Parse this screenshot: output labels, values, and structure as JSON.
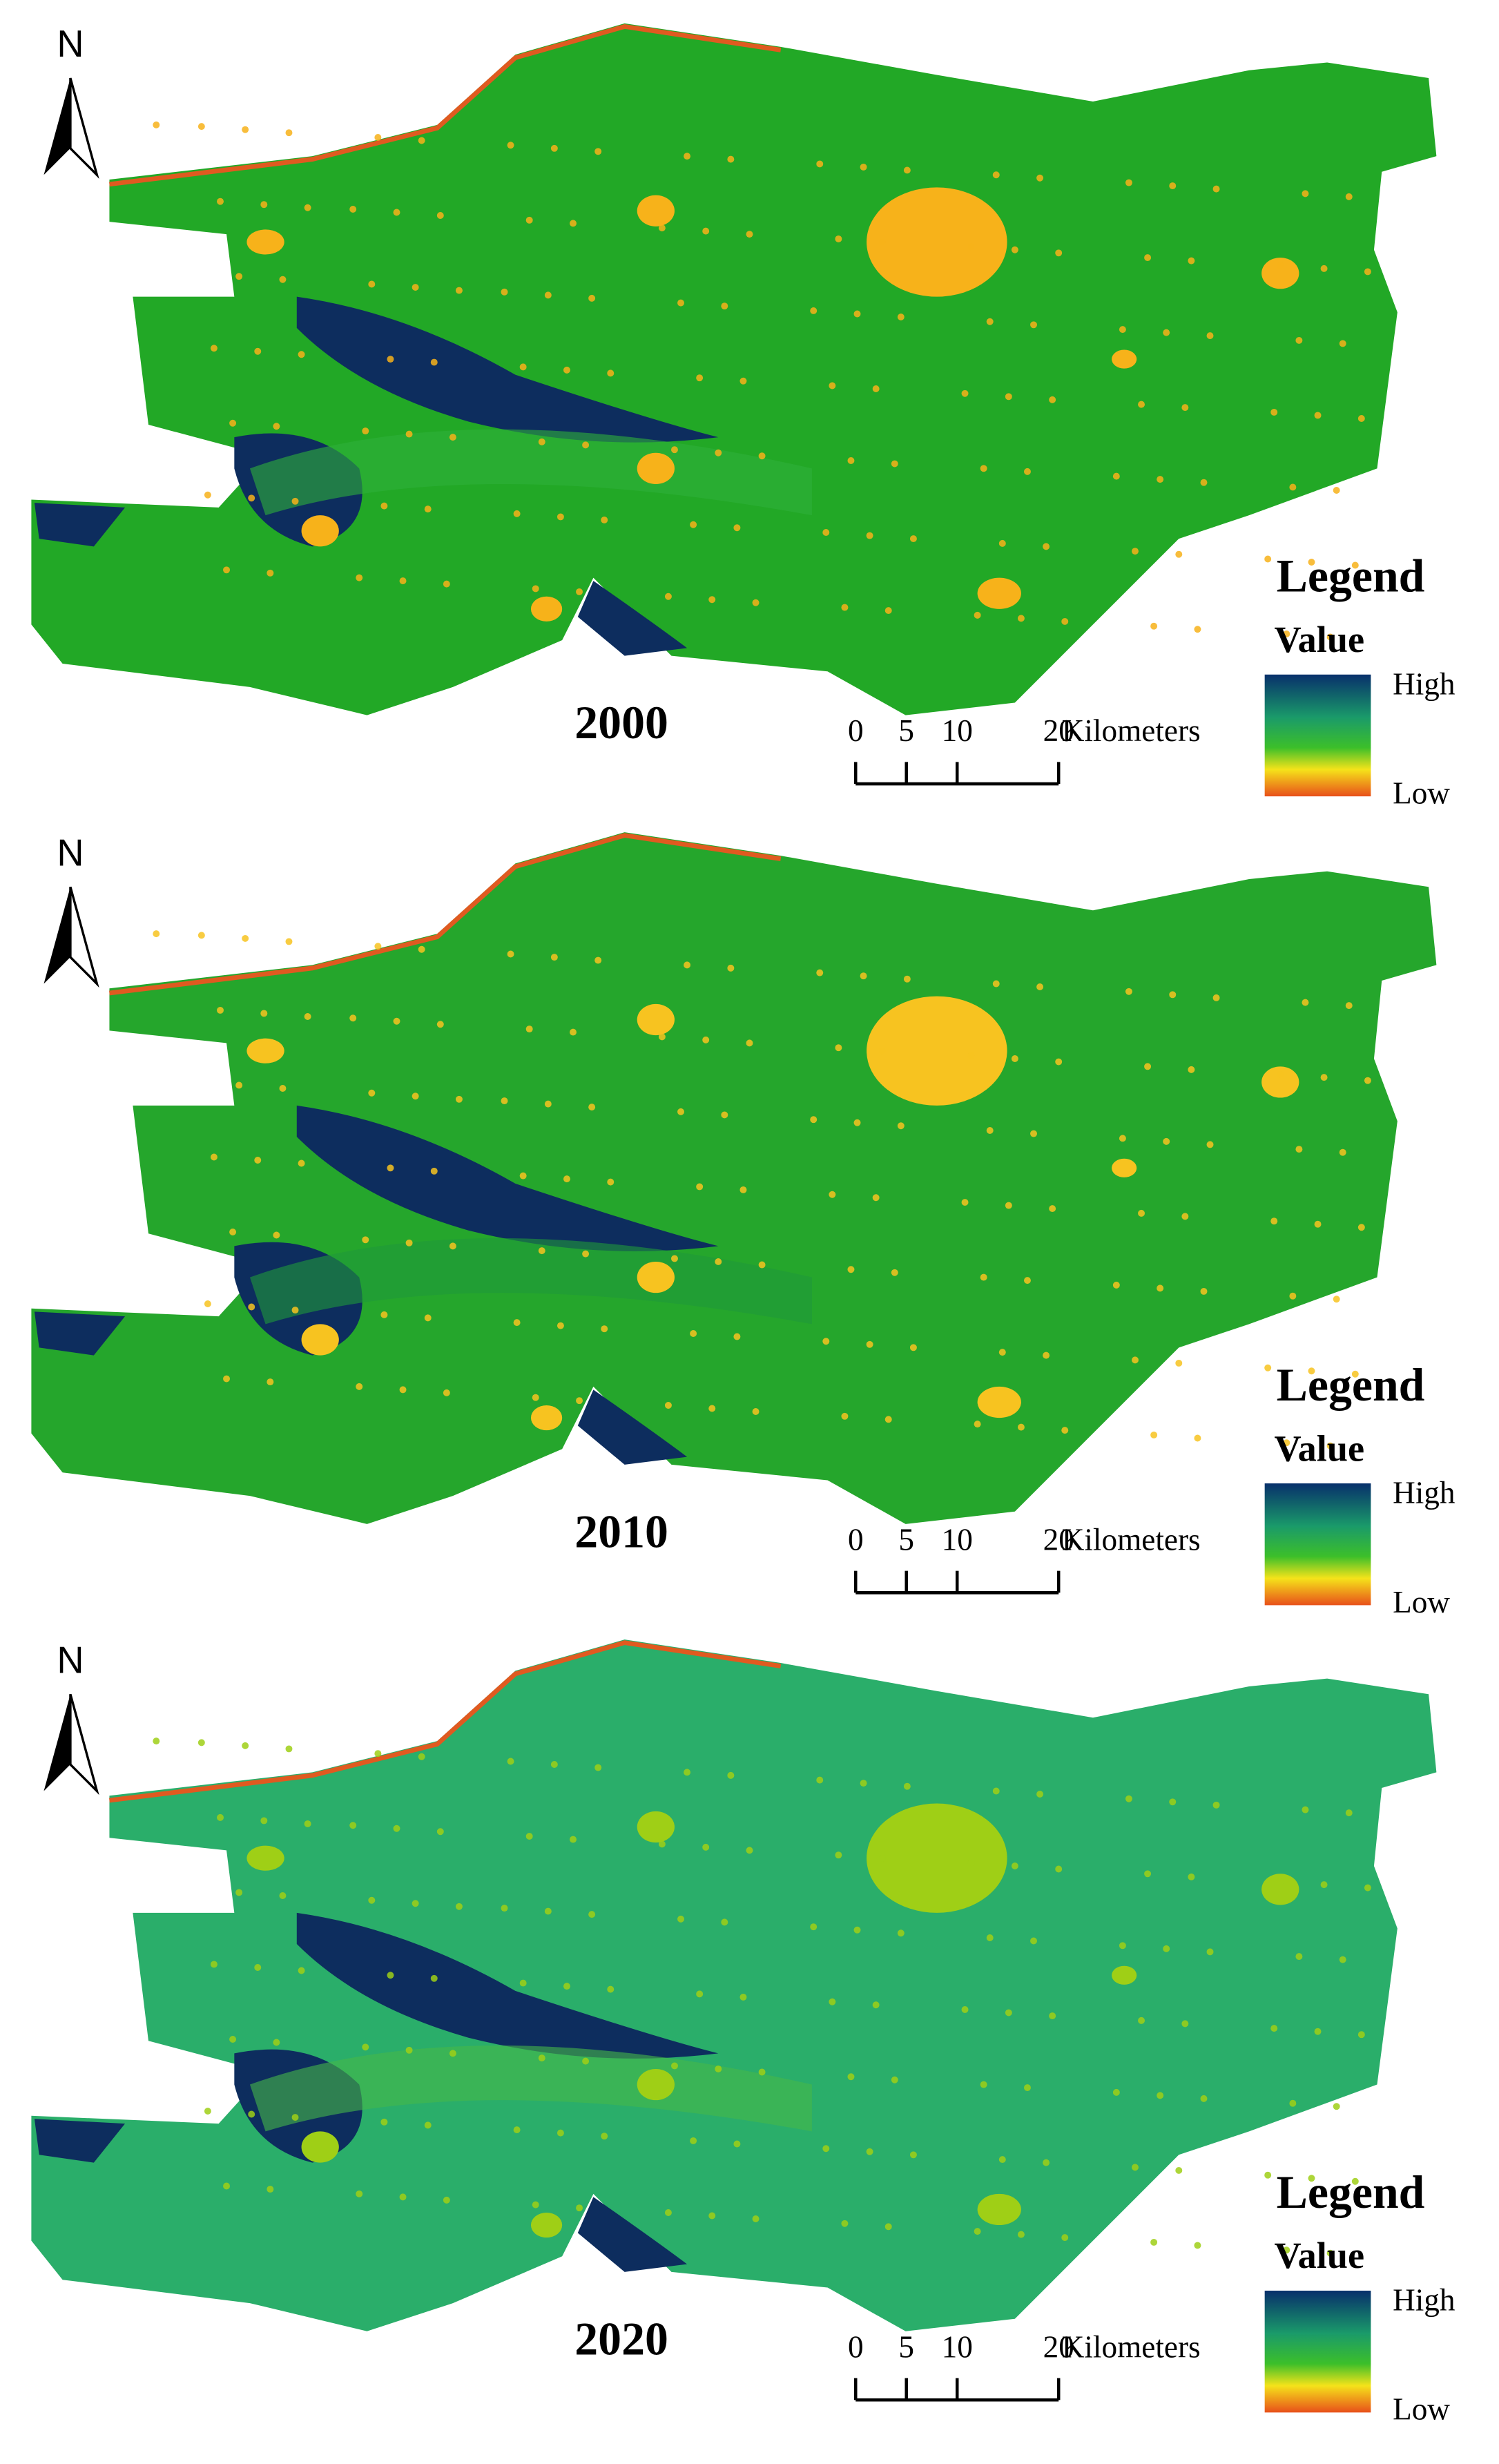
{
  "panels": [
    {
      "year": "2000",
      "north": "N",
      "legend": {
        "title": "Legend",
        "field": "Value",
        "high": "High",
        "low": "Low"
      },
      "scale_bar": {
        "ticks": [
          0,
          5,
          10,
          20
        ],
        "unit": "Kilometers"
      }
    },
    {
      "year": "2010",
      "north": "N",
      "legend": {
        "title": "Legend",
        "field": "Value",
        "high": "High",
        "low": "Low"
      },
      "scale_bar": {
        "ticks": [
          0,
          5,
          10,
          20
        ],
        "unit": "Kilometers"
      }
    },
    {
      "year": "2020",
      "north": "N",
      "legend": {
        "title": "Legend",
        "field": "Value",
        "high": "High",
        "low": "Low"
      },
      "scale_bar": {
        "ticks": [
          0,
          5,
          10,
          20
        ],
        "unit": "Kilometers"
      }
    }
  ]
}
